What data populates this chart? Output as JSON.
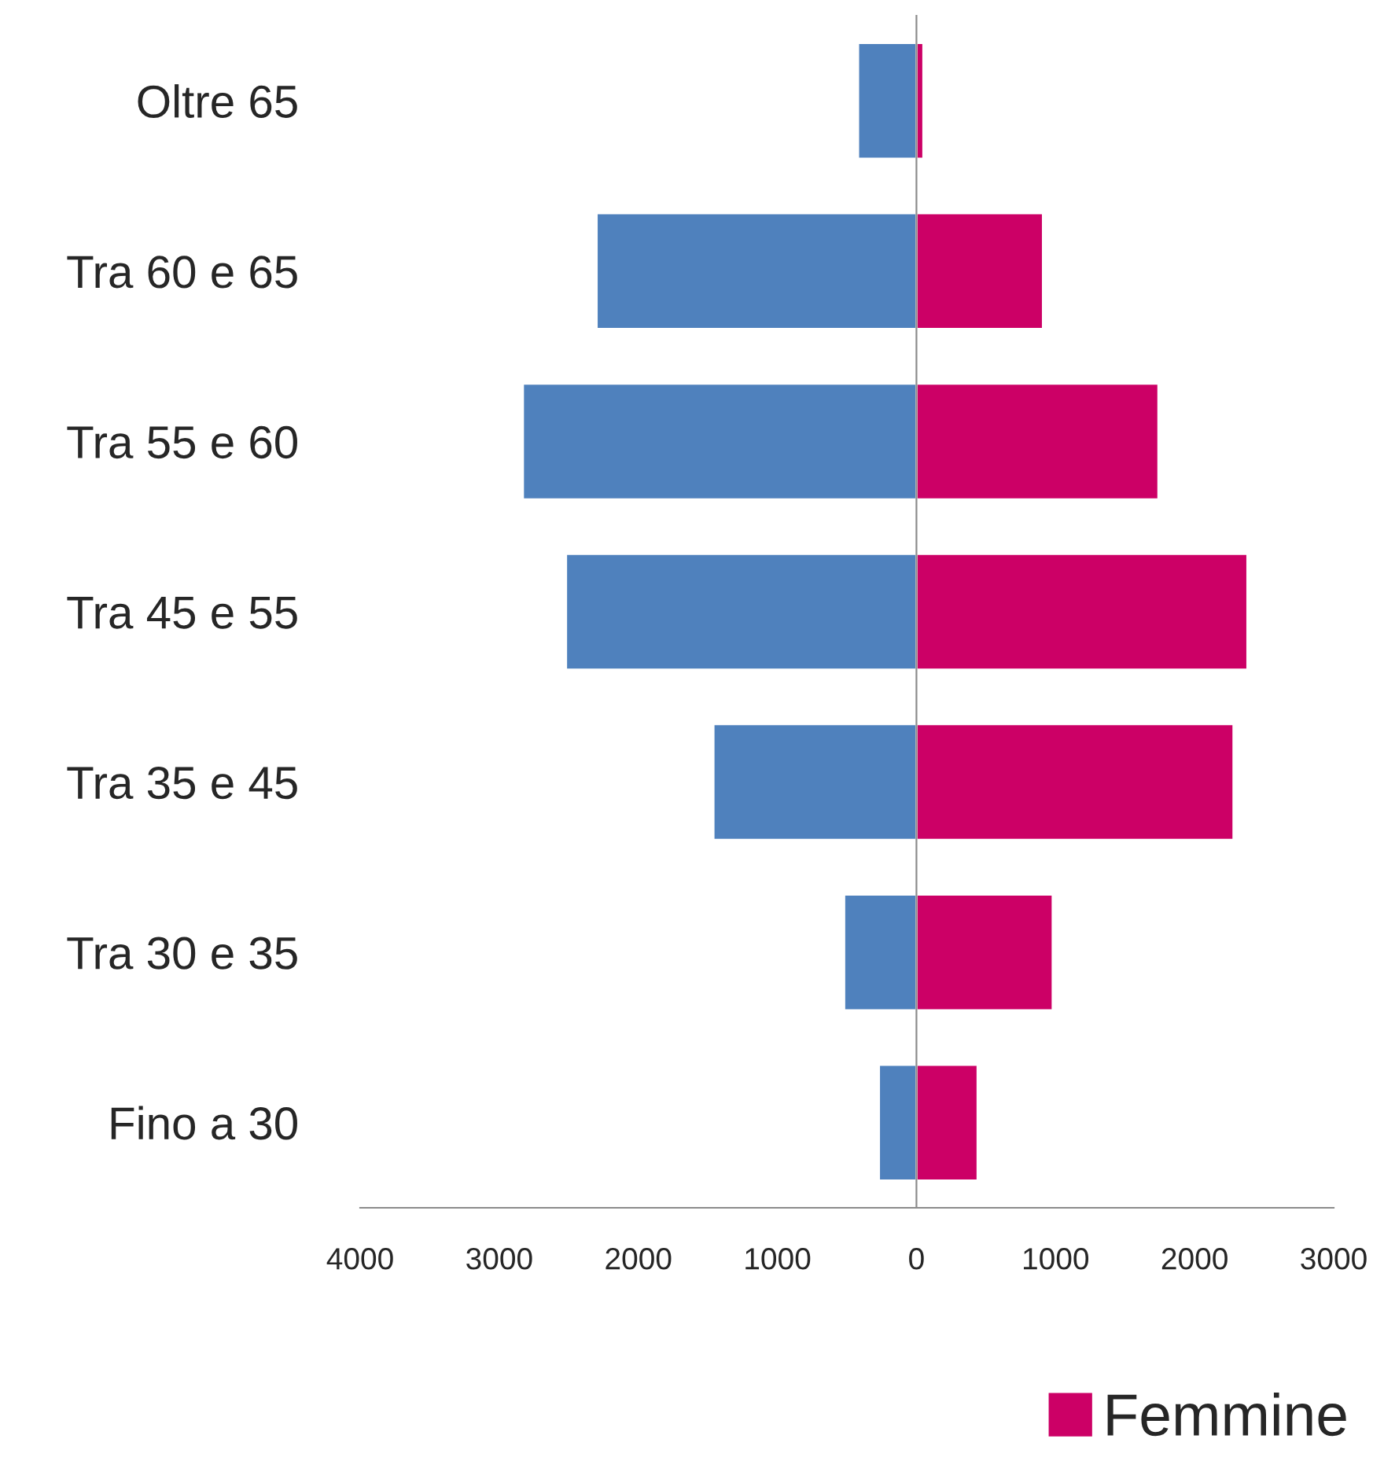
{
  "chart_data": {
    "type": "bar",
    "orientation": "horizontal",
    "stacked": true,
    "categories": [
      "Oltre 65",
      "Tra 60 e 65",
      "Tra 55 e 60",
      "Tra 45 e 55",
      "Tra 35 e 45",
      "Tra 30 e 35",
      "Fino a 30"
    ],
    "series": [
      {
        "color": "#4f81bd",
        "values": [
          -420,
          -2300,
          -2830,
          -2520,
          -1460,
          -520,
          -270
        ]
      },
      {
        "name": "Femmine",
        "color": "#cc0066",
        "values": [
          50,
          910,
          1740,
          2380,
          2280,
          980,
          440
        ]
      }
    ],
    "xlim": [
      -4000,
      3000
    ],
    "xticks": [
      {
        "value": -4000,
        "label": "4000"
      },
      {
        "value": -3000,
        "label": "3000"
      },
      {
        "value": -2000,
        "label": "2000"
      },
      {
        "value": -1000,
        "label": "1000"
      },
      0,
      1000,
      2000,
      3000
    ],
    "legend": "bottom right"
  }
}
